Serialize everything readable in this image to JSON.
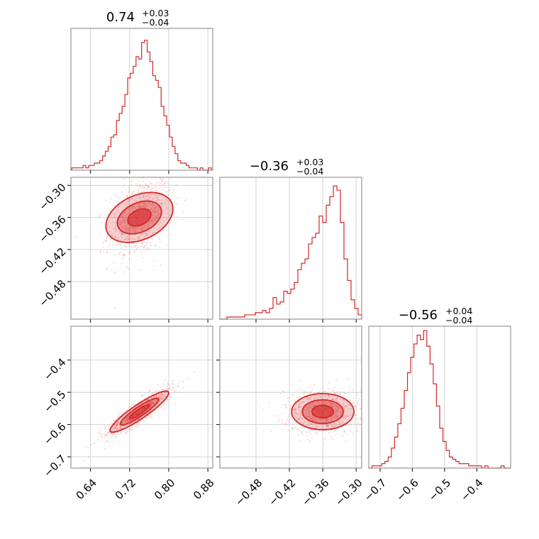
{
  "figure": {
    "accent_color": "#d62728",
    "panel_border_color": "#808080",
    "grid_color": "#c8c8c8"
  },
  "chart_data": [
    {
      "type": "histogram",
      "title_main": "0.74",
      "title_sup": "+0.03",
      "title_sub": "−0.04",
      "xlim": [
        0.6,
        0.89
      ],
      "xticks": [
        0.64,
        0.72,
        0.8,
        0.88
      ],
      "xtick_labels": [
        "0.64",
        "0.72",
        "0.80",
        "0.88"
      ],
      "grid": true,
      "bin_range": [
        0.602,
        0.887
      ],
      "counts": [
        1,
        1,
        1,
        1,
        2,
        1,
        2,
        2,
        3,
        3,
        4,
        6,
        8,
        10,
        14,
        15,
        21,
        24,
        27,
        32,
        39,
        41,
        44,
        48,
        47,
        54,
        55,
        50,
        46,
        40,
        38,
        35,
        27,
        23,
        19,
        14,
        10,
        7,
        4,
        3,
        3,
        2,
        1,
        1,
        1,
        0,
        1,
        0,
        0,
        1
      ],
      "ylim": [
        0,
        60
      ]
    },
    {
      "type": "scatter",
      "description_of_series": "joint",
      "xlim": [
        0.6,
        0.89
      ],
      "ylim": [
        -0.55,
        -0.285
      ],
      "xticks": [
        0.64,
        0.72,
        0.8,
        0.88
      ],
      "yticks": [
        -0.3,
        -0.36,
        -0.42,
        -0.48
      ],
      "ytick_labels": [
        "−0.30",
        "−0.36",
        "−0.42",
        "−0.48"
      ],
      "center": [
        0.74,
        -0.36
      ],
      "contour_levels_sigma": [
        0.5,
        1.0,
        1.5
      ],
      "grid": true
    },
    {
      "type": "histogram",
      "title_main": "−0.36",
      "title_sup": "+0.03",
      "title_sub": "−0.04",
      "xlim": [
        -0.545,
        -0.29
      ],
      "xticks": [
        -0.48,
        -0.42,
        -0.36,
        -0.3
      ],
      "grid": true,
      "bin_range": [
        -0.545,
        -0.29
      ],
      "counts": [
        0,
        0,
        1,
        1,
        1,
        1,
        1,
        2,
        2,
        2,
        3,
        3,
        4,
        3,
        5,
        10,
        7,
        8,
        13,
        12,
        14,
        17,
        23,
        26,
        28,
        35,
        38,
        40,
        48,
        45,
        53,
        57,
        62,
        60,
        45,
        28,
        18,
        9,
        5,
        2
      ],
      "ylim": [
        0,
        66
      ]
    },
    {
      "type": "scatter",
      "xlim": [
        0.6,
        0.89
      ],
      "ylim": [
        -0.735,
        -0.295
      ],
      "xticks": [
        0.64,
        0.72,
        0.8,
        0.88
      ],
      "xtick_labels": [
        "0.64",
        "0.72",
        "0.80",
        "0.88"
      ],
      "yticks": [
        -0.4,
        -0.5,
        -0.6,
        -0.7
      ],
      "ytick_labels": [
        "−0.4",
        "−0.5",
        "−0.6",
        "−0.7"
      ],
      "center": [
        0.74,
        -0.56
      ],
      "correlation": 0.9,
      "grid": true
    },
    {
      "type": "scatter",
      "xlim": [
        -0.545,
        -0.29
      ],
      "ylim": [
        -0.735,
        -0.295
      ],
      "xticks": [
        -0.48,
        -0.42,
        -0.36,
        -0.3
      ],
      "xtick_labels": [
        "−0.48",
        "−0.42",
        "−0.36",
        "−0.30"
      ],
      "yticks": [
        -0.4,
        -0.5,
        -0.6,
        -0.7
      ],
      "center": [
        -0.36,
        -0.56
      ],
      "correlation": 0.0,
      "grid": true
    },
    {
      "type": "histogram",
      "title_main": "−0.56",
      "title_sup": "+0.04",
      "title_sub": "−0.04",
      "xlim": [
        -0.735,
        -0.295
      ],
      "xticks": [
        -0.7,
        -0.6,
        -0.5,
        -0.4
      ],
      "xtick_labels": [
        "−0.7",
        "−0.6",
        "−0.5",
        "−0.4"
      ],
      "grid": true,
      "bin_range": [
        -0.735,
        -0.295
      ],
      "counts": [
        0,
        1,
        1,
        1,
        2,
        3,
        5,
        9,
        14,
        20,
        27,
        35,
        43,
        50,
        56,
        60,
        58,
        62,
        55,
        47,
        38,
        28,
        18,
        12,
        8,
        5,
        4,
        3,
        2,
        2,
        2,
        1,
        1,
        1,
        1,
        0,
        1,
        0,
        0,
        0,
        0,
        1,
        0,
        0
      ],
      "ylim": [
        0,
        64
      ]
    }
  ]
}
